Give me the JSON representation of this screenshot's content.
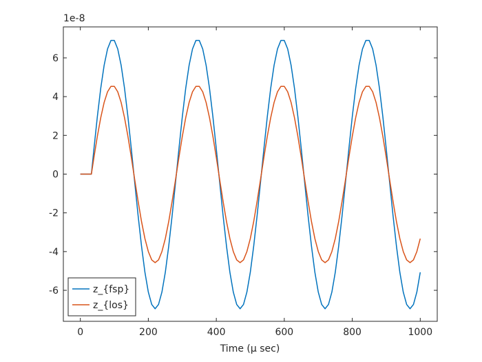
{
  "chart_data": {
    "type": "line",
    "title": "",
    "xlabel": "Time (μ sec)",
    "ylabel": "",
    "y_multiplier_label": "1e-8",
    "xlim": [
      -50,
      1050
    ],
    "ylim": [
      -7.6,
      7.6
    ],
    "xticks": [
      0,
      200,
      400,
      600,
      800,
      1000
    ],
    "xtick_labels": [
      "0",
      "200",
      "400",
      "600",
      "800",
      "1000"
    ],
    "yticks": [
      -6,
      -4,
      -2,
      0,
      2,
      4,
      6
    ],
    "ytick_labels": [
      "-6",
      "-4",
      "-2",
      "0",
      "2",
      "4",
      "6"
    ],
    "grid": false,
    "legend_position": "bottom-left",
    "cycle_x_start": 40,
    "cycle_x_step": 10,
    "prefix_x": [
      0,
      10,
      20,
      30,
      32.5
    ],
    "series": [
      {
        "name": "z_{fsp}",
        "color": "#0072BD",
        "prefix_y": [
          0,
          0,
          0,
          0,
          0
        ],
        "cycle": [
          1.3,
          2.96,
          4.43,
          5.62,
          6.46,
          6.9,
          6.9,
          6.46,
          5.62,
          4.43,
          2.96,
          1.3,
          -0.44,
          -2.15,
          -3.72,
          -5.07,
          -6.09,
          -6.73,
          -6.95,
          -6.73,
          -6.09,
          -5.07,
          -3.72,
          -2.15,
          -0.44
        ]
      },
      {
        "name": "z_{los}",
        "color": "#D95319",
        "prefix_y": [
          0,
          0,
          0,
          0,
          0
        ],
        "cycle": [
          0.86,
          1.95,
          2.91,
          3.7,
          4.25,
          4.53,
          4.53,
          4.25,
          3.7,
          2.91,
          1.95,
          0.86,
          -0.29,
          -1.41,
          -2.45,
          -3.33,
          -4.0,
          -4.43,
          -4.57,
          -4.43,
          -4.0,
          -3.33,
          -2.45,
          -1.41,
          -0.29
        ]
      }
    ],
    "x_end": 1000
  }
}
